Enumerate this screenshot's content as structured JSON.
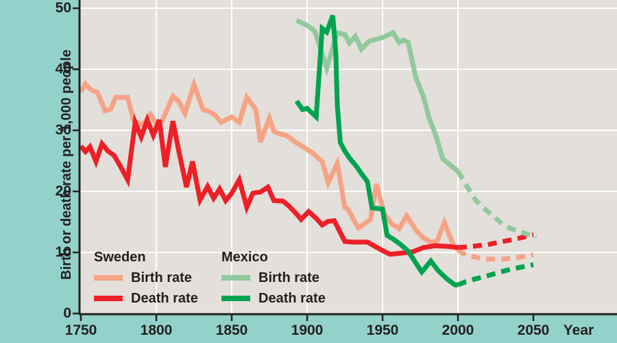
{
  "figure": {
    "background_color": "#93d2cb",
    "plot_background_color": "#e3dfda",
    "gridline_color": "#ffffff",
    "axis_color": "#231f20",
    "text_color": "#231f20"
  },
  "chart_data": {
    "type": "line",
    "title": "",
    "xlabel": "Year",
    "ylabel": "Birth or death rate per 1,000 people",
    "xlim": [
      1750,
      2105
    ],
    "ylim": [
      0,
      51.5
    ],
    "x_ticks": [
      1750,
      1800,
      1850,
      1900,
      1950,
      2000,
      2050
    ],
    "x_gridlines": [
      1800,
      1850,
      1900,
      1950,
      2000
    ],
    "y_ticks": [
      0,
      10,
      20,
      30,
      40,
      50
    ],
    "grid": "white lines on gray plot, dashed segments are projections after ~2000",
    "legend_position": "inside-bottom-left",
    "series": [
      {
        "id": "sweden-birth-rate",
        "name": "Sweden Birth rate",
        "color": "#f6a385",
        "solid": [
          [
            1750,
            36.3
          ],
          [
            1753,
            37.6
          ],
          [
            1757,
            36.6
          ],
          [
            1761,
            36.2
          ],
          [
            1766,
            33.2
          ],
          [
            1770,
            33.5
          ],
          [
            1773,
            35.4
          ],
          [
            1781,
            35.4
          ],
          [
            1785,
            31.5
          ],
          [
            1791,
            30.9
          ],
          [
            1796,
            32.6
          ],
          [
            1800,
            31.1
          ],
          [
            1804,
            31.6
          ],
          [
            1811,
            35.6
          ],
          [
            1815,
            34.7
          ],
          [
            1819,
            32.8
          ],
          [
            1825,
            37.5
          ],
          [
            1831,
            33.4
          ],
          [
            1834,
            33.2
          ],
          [
            1839,
            32.5
          ],
          [
            1843,
            31.3
          ],
          [
            1850,
            32.2
          ],
          [
            1855,
            31.3
          ],
          [
            1860,
            35.4
          ],
          [
            1866,
            33.4
          ],
          [
            1869,
            28.1
          ],
          [
            1875,
            32.0
          ],
          [
            1878,
            29.8
          ],
          [
            1882,
            29.4
          ],
          [
            1886,
            29.2
          ],
          [
            1891,
            28.3
          ],
          [
            1894,
            27.8
          ],
          [
            1898,
            27.2
          ],
          [
            1903,
            26.4
          ],
          [
            1910,
            24.9
          ],
          [
            1914,
            21.4
          ],
          [
            1920,
            24.6
          ],
          [
            1925,
            17.4
          ],
          [
            1927,
            17.1
          ],
          [
            1934,
            14.0
          ],
          [
            1942,
            15.4
          ],
          [
            1946,
            21.2
          ],
          [
            1951,
            16.4
          ],
          [
            1956,
            14.7
          ],
          [
            1961,
            13.9
          ],
          [
            1966,
            16.0
          ],
          [
            1972,
            13.7
          ],
          [
            1977,
            12.4
          ],
          [
            1982,
            11.7
          ],
          [
            1986,
            11.8
          ],
          [
            1991,
            14.9
          ],
          [
            1997,
            11.2
          ],
          [
            2000,
            10.4
          ]
        ],
        "projected": [
          [
            2000,
            10.4
          ],
          [
            2005,
            9.6
          ],
          [
            2012,
            9.2
          ],
          [
            2020,
            8.9
          ],
          [
            2030,
            8.9
          ],
          [
            2040,
            9.2
          ],
          [
            2050,
            9.6
          ]
        ]
      },
      {
        "id": "sweden-death-rate",
        "name": "Sweden Death rate",
        "color": "#ee1f26",
        "solid": [
          [
            1750,
            27.4
          ],
          [
            1753,
            26.5
          ],
          [
            1756,
            27.3
          ],
          [
            1760,
            24.9
          ],
          [
            1764,
            27.8
          ],
          [
            1768,
            26.6
          ],
          [
            1772,
            25.9
          ],
          [
            1776,
            24.2
          ],
          [
            1781,
            21.9
          ],
          [
            1786,
            31.3
          ],
          [
            1790,
            28.9
          ],
          [
            1794,
            31.7
          ],
          [
            1798,
            29.2
          ],
          [
            1802,
            31.7
          ],
          [
            1806,
            24.0
          ],
          [
            1811,
            31.5
          ],
          [
            1815,
            26.5
          ],
          [
            1820,
            20.7
          ],
          [
            1824,
            24.9
          ],
          [
            1829,
            18.6
          ],
          [
            1834,
            20.8
          ],
          [
            1838,
            18.9
          ],
          [
            1842,
            20.4
          ],
          [
            1846,
            18.5
          ],
          [
            1850,
            19.7
          ],
          [
            1855,
            21.9
          ],
          [
            1860,
            17.4
          ],
          [
            1864,
            19.7
          ],
          [
            1869,
            19.9
          ],
          [
            1874,
            20.7
          ],
          [
            1878,
            18.5
          ],
          [
            1884,
            18.4
          ],
          [
            1888,
            17.6
          ],
          [
            1893,
            16.3
          ],
          [
            1896,
            15.4
          ],
          [
            1901,
            16.7
          ],
          [
            1906,
            15.6
          ],
          [
            1910,
            14.5
          ],
          [
            1914,
            15.1
          ],
          [
            1918,
            15.2
          ],
          [
            1925,
            11.8
          ],
          [
            1930,
            11.7
          ],
          [
            1940,
            11.7
          ],
          [
            1950,
            10.3
          ],
          [
            1955,
            9.7
          ],
          [
            1963,
            9.9
          ],
          [
            1970,
            10.1
          ],
          [
            1977,
            10.8
          ],
          [
            1985,
            11.1
          ],
          [
            1993,
            11.0
          ],
          [
            2000,
            10.8
          ]
        ],
        "projected": [
          [
            2000,
            10.8
          ],
          [
            2010,
            11.0
          ],
          [
            2020,
            11.3
          ],
          [
            2030,
            11.8
          ],
          [
            2040,
            12.3
          ],
          [
            2050,
            12.9
          ]
        ]
      },
      {
        "id": "mexico-birth-rate",
        "name": "Mexico Birth rate",
        "color": "#90c99c",
        "solid": [
          [
            1893,
            48.0
          ],
          [
            1900,
            47.2
          ],
          [
            1905,
            46.3
          ],
          [
            1913,
            40.2
          ],
          [
            1920,
            46.0
          ],
          [
            1925,
            45.7
          ],
          [
            1928,
            44.3
          ],
          [
            1932,
            45.4
          ],
          [
            1936,
            43.3
          ],
          [
            1941,
            44.6
          ],
          [
            1950,
            45.2
          ],
          [
            1957,
            46.0
          ],
          [
            1961,
            44.4
          ],
          [
            1964,
            44.8
          ],
          [
            1967,
            44.4
          ],
          [
            1972,
            38.7
          ],
          [
            1977,
            35.6
          ],
          [
            1981,
            31.9
          ],
          [
            1985,
            29.4
          ],
          [
            1990,
            25.3
          ],
          [
            2000,
            23.3
          ]
        ],
        "projected": [
          [
            2000,
            23.3
          ],
          [
            2005,
            21.2
          ],
          [
            2012,
            18.5
          ],
          [
            2017,
            17.3
          ],
          [
            2023,
            16.0
          ],
          [
            2029,
            14.8
          ],
          [
            2035,
            13.9
          ],
          [
            2041,
            13.4
          ],
          [
            2047,
            12.9
          ],
          [
            2052,
            12.6
          ]
        ]
      },
      {
        "id": "mexico-death-rate",
        "name": "Mexico Death rate",
        "color": "#00a350",
        "solid": [
          [
            1893,
            34.8
          ],
          [
            1897,
            33.4
          ],
          [
            1900,
            33.6
          ],
          [
            1906,
            32.2
          ],
          [
            1910,
            46.7
          ],
          [
            1913,
            46.1
          ],
          [
            1917,
            48.8
          ],
          [
            1919,
            42.7
          ],
          [
            1920,
            34.1
          ],
          [
            1922,
            28.0
          ],
          [
            1925,
            26.6
          ],
          [
            1928,
            25.5
          ],
          [
            1933,
            24.0
          ],
          [
            1936,
            22.9
          ],
          [
            1940,
            21.6
          ],
          [
            1943,
            17.3
          ],
          [
            1950,
            17.1
          ],
          [
            1953,
            12.8
          ],
          [
            1957,
            12.2
          ],
          [
            1962,
            11.3
          ],
          [
            1967,
            10.2
          ],
          [
            1976,
            6.8
          ],
          [
            1982,
            8.6
          ],
          [
            1987,
            7.0
          ],
          [
            1993,
            5.6
          ],
          [
            1998,
            4.7
          ],
          [
            2000,
            4.7
          ]
        ],
        "projected": [
          [
            2000,
            4.7
          ],
          [
            2005,
            5.2
          ],
          [
            2012,
            5.7
          ],
          [
            2020,
            6.2
          ],
          [
            2028,
            6.8
          ],
          [
            2036,
            7.3
          ],
          [
            2044,
            7.7
          ],
          [
            2050,
            8.0
          ]
        ]
      }
    ],
    "legend": {
      "groups": [
        {
          "title": "Sweden",
          "items": [
            {
              "label": "Birth rate",
              "color": "#f6a385"
            },
            {
              "label": "Death rate",
              "color": "#ee1f26"
            }
          ]
        },
        {
          "title": "Mexico",
          "items": [
            {
              "label": "Birth rate",
              "color": "#90c99c"
            },
            {
              "label": "Death rate",
              "color": "#00a350"
            }
          ]
        }
      ]
    }
  }
}
